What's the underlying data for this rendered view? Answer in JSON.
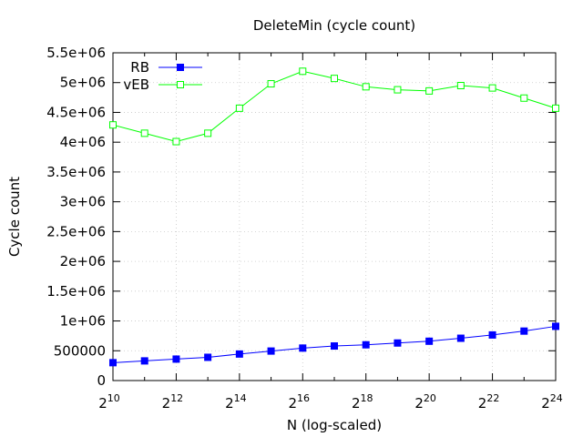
{
  "chart_data": {
    "type": "line",
    "title": "DeleteMin (cycle count)",
    "xlabel": "N (log-scaled)",
    "ylabel": "Cycle count",
    "x_scale": "log2",
    "x_exponents": [
      10,
      11,
      12,
      13,
      14,
      15,
      16,
      17,
      18,
      19,
      20,
      21,
      22,
      23,
      24
    ],
    "x_tick_exponents": [
      10,
      12,
      14,
      16,
      18,
      20,
      22,
      24
    ],
    "x_tick_base": "2",
    "ylim": [
      0,
      5500000
    ],
    "y_ticks": [
      0,
      500000,
      1000000,
      1500000,
      2000000,
      2500000,
      3000000,
      3500000,
      4000000,
      4500000,
      5000000,
      5500000
    ],
    "y_tick_labels": [
      "0",
      "500000",
      "1e+06",
      "1.5e+06",
      "2e+06",
      "2.5e+06",
      "3e+06",
      "3.5e+06",
      "4e+06",
      "4.5e+06",
      "5e+06",
      "5.5e+06"
    ],
    "grid": true,
    "legend_position": "top-left",
    "series": [
      {
        "name": "RB",
        "color": "#0000ff",
        "marker": "filled-square",
        "values": [
          300000,
          330000,
          360000,
          390000,
          445000,
          495000,
          545000,
          580000,
          600000,
          630000,
          660000,
          710000,
          765000,
          830000,
          910000
        ]
      },
      {
        "name": "vEB",
        "color": "#00ff00",
        "marker": "open-square",
        "values": [
          4290000,
          4150000,
          4010000,
          4150000,
          4570000,
          4980000,
          5190000,
          5070000,
          4930000,
          4880000,
          4860000,
          4950000,
          4910000,
          4740000,
          4570000
        ]
      }
    ]
  }
}
